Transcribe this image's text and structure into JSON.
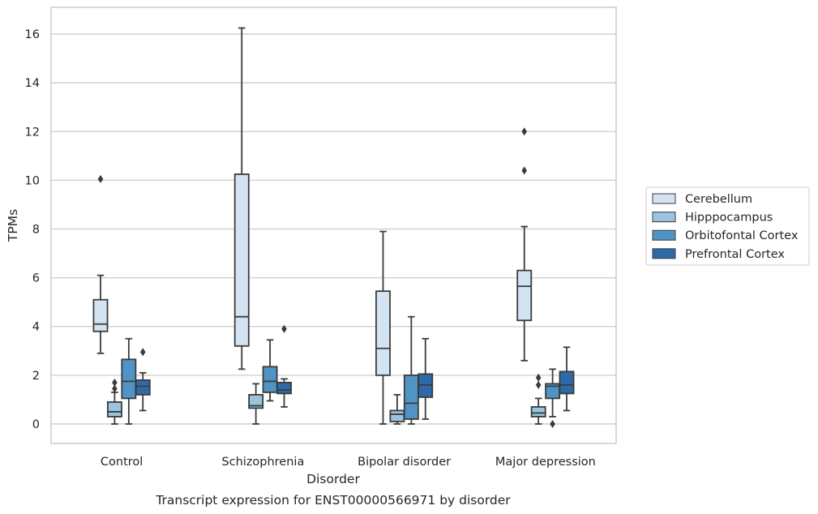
{
  "caption": "Transcript expression for ENST00000566971 by disorder",
  "chart_data": {
    "type": "boxplot",
    "title": "",
    "xlabel": "Disorder",
    "ylabel": "TPMs",
    "ylim": [
      -0.8,
      17.1
    ],
    "yticks": [
      0,
      2,
      4,
      6,
      8,
      10,
      12,
      14,
      16
    ],
    "grid": true,
    "legend_position": "right",
    "categories": [
      "Control",
      "Schizophrenia",
      "Bipolar disorder",
      "Major depression"
    ],
    "series": [
      {
        "name": "Cerebellum",
        "color": "#d4e3f2",
        "boxes": [
          {
            "whisker_low": 2.9,
            "q1": 3.8,
            "median": 4.1,
            "q3": 5.1,
            "whisker_high": 6.1,
            "outliers": [
              10.05
            ]
          },
          {
            "whisker_low": 2.25,
            "q1": 3.2,
            "median": 4.4,
            "q3": 10.25,
            "whisker_high": 16.25,
            "outliers": []
          },
          {
            "whisker_low": 0.0,
            "q1": 2.0,
            "median": 3.1,
            "q3": 5.45,
            "whisker_high": 7.9,
            "outliers": []
          },
          {
            "whisker_low": 2.6,
            "q1": 4.25,
            "median": 5.65,
            "q3": 6.3,
            "whisker_high": 8.1,
            "outliers": [
              10.4,
              12.0
            ]
          }
        ]
      },
      {
        "name": "Hipppocampus",
        "color": "#9ac4e0",
        "boxes": [
          {
            "whisker_low": 0.0,
            "q1": 0.3,
            "median": 0.5,
            "q3": 0.9,
            "whisker_high": 1.3,
            "outliers": [
              1.45,
              1.7
            ]
          },
          {
            "whisker_low": 0.0,
            "q1": 0.65,
            "median": 0.75,
            "q3": 1.2,
            "whisker_high": 1.65,
            "outliers": []
          },
          {
            "whisker_low": 0.0,
            "q1": 0.1,
            "median": 0.4,
            "q3": 0.55,
            "whisker_high": 1.2,
            "outliers": []
          },
          {
            "whisker_low": 0.0,
            "q1": 0.3,
            "median": 0.45,
            "q3": 0.7,
            "whisker_high": 1.05,
            "outliers": [
              1.6,
              1.9
            ]
          }
        ]
      },
      {
        "name": "Orbitofontal Cortex",
        "color": "#4f94c4",
        "boxes": [
          {
            "whisker_low": 0.0,
            "q1": 1.05,
            "median": 1.75,
            "q3": 2.65,
            "whisker_high": 3.5,
            "outliers": []
          },
          {
            "whisker_low": 0.95,
            "q1": 1.3,
            "median": 1.75,
            "q3": 2.35,
            "whisker_high": 3.45,
            "outliers": []
          },
          {
            "whisker_low": 0.0,
            "q1": 0.2,
            "median": 0.85,
            "q3": 2.0,
            "whisker_high": 4.4,
            "outliers": []
          },
          {
            "whisker_low": 0.3,
            "q1": 1.05,
            "median": 1.55,
            "q3": 1.65,
            "whisker_high": 2.25,
            "outliers": [
              0.0
            ]
          }
        ]
      },
      {
        "name": "Prefrontal Cortex",
        "color": "#2d6ba8",
        "boxes": [
          {
            "whisker_low": 0.55,
            "q1": 1.2,
            "median": 1.55,
            "q3": 1.8,
            "whisker_high": 2.1,
            "outliers": [
              2.95
            ]
          },
          {
            "whisker_low": 0.7,
            "q1": 1.25,
            "median": 1.4,
            "q3": 1.7,
            "whisker_high": 1.85,
            "outliers": [
              3.9
            ]
          },
          {
            "whisker_low": 0.2,
            "q1": 1.1,
            "median": 1.6,
            "q3": 2.05,
            "whisker_high": 3.5,
            "outliers": []
          },
          {
            "whisker_low": 0.55,
            "q1": 1.25,
            "median": 1.6,
            "q3": 2.15,
            "whisker_high": 3.15,
            "outliers": []
          }
        ]
      }
    ]
  }
}
